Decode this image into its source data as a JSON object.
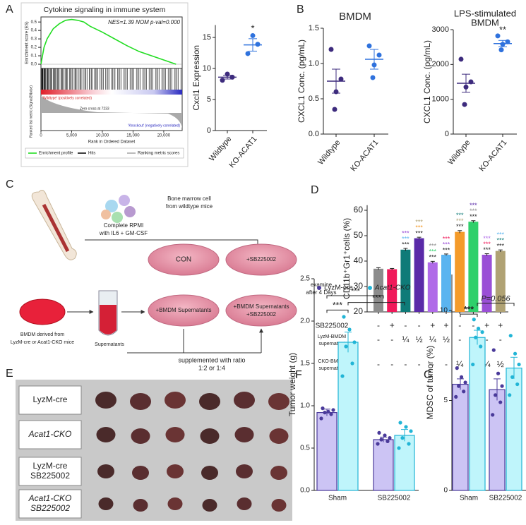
{
  "panel_labels": [
    "A",
    "B",
    "C",
    "D",
    "E",
    "F",
    "G"
  ],
  "chart_data": [
    {
      "type": "line",
      "title": "Cytokine signaling in immune system",
      "annotation": "NES=1.39 NOM p-val=0.000",
      "ylabel": "Enrichment score (ES)",
      "xlabel": "Rank in Ordered Dataset",
      "metric_label": "Ranked list metric (Signal2Noise)",
      "zero_cross": "Zero cross at 7233",
      "pos_label": "'Wildtype' (positively correlated)",
      "neg_label": "'Knockout' (negatively correlated)",
      "legend": [
        "Enrichment profile",
        "Hits",
        "Ranking metric scores"
      ],
      "color": "#22dd22",
      "x": [
        0,
        500,
        1000,
        2000,
        3000,
        4000,
        5000,
        6000,
        7000,
        8000,
        10000,
        12000,
        14000,
        16000,
        18000,
        20000,
        22000
      ],
      "values": [
        0,
        0.2,
        0.3,
        0.42,
        0.48,
        0.52,
        0.53,
        0.52,
        0.5,
        0.45,
        0.38,
        0.3,
        0.22,
        0.15,
        0.1,
        0.05,
        0.0
      ],
      "xlim": [
        0,
        23000
      ],
      "xticks": [
        0,
        {
          "value": 5000,
          "label": "5,000"
        },
        {
          "value": 10000,
          "label": "10,000"
        },
        {
          "value": 15000,
          "label": "15,000"
        },
        {
          "value": 20000,
          "label": "20,000"
        }
      ],
      "ylim": [
        -0.05,
        0.56
      ],
      "yticks": [
        {
          "value": 0,
          "label": "0.0"
        },
        0.1,
        0.2,
        0.3,
        0.4,
        0.5
      ]
    },
    {
      "type": "strip",
      "ylabel": "Cxcl1 Expression",
      "categories": [
        "Wildtype",
        "KO-ACAT1"
      ],
      "points": [
        [
          8.1,
          8.6,
          9.1
        ],
        [
          12.4,
          13.9,
          15.3
        ]
      ],
      "means": [
        8.6,
        13.8
      ],
      "errors": [
        0.3,
        1.0
      ],
      "colors": [
        "#3d2b7d",
        "#2f72dd"
      ],
      "annotation": "*",
      "ylim": [
        0,
        17
      ],
      "yticks": [
        0,
        5,
        10,
        15
      ]
    },
    {
      "type": "strip",
      "title": "BMDM",
      "ylabel": "CXCL1 Conc. (pg/mL)",
      "categories": [
        "Wildtype",
        "KO-ACAT1"
      ],
      "points": [
        [
          1.2,
          0.78,
          0.6,
          0.35
        ],
        [
          1.25,
          1.12,
          0.98,
          0.8
        ]
      ],
      "means": [
        0.75,
        1.06
      ],
      "errors": [
        0.17,
        0.14
      ],
      "colors": [
        "#3d2b7d",
        "#2f72dd"
      ],
      "ylim": [
        0,
        1.5
      ],
      "yticks": [
        {
          "value": 0,
          "label": "0.0"
        },
        0.5,
        {
          "value": 1,
          "label": "1.0"
        },
        1.5
      ]
    },
    {
      "type": "strip",
      "title": [
        "LPS-stimulated",
        "BMDM"
      ],
      "ylabel": "CXCL1 Conc. (pg/mL)",
      "categories": [
        "Wildtype",
        "KO-ACAT1"
      ],
      "points": [
        [
          2150,
          1500,
          1350,
          850
        ],
        [
          2820,
          2650,
          2580,
          2420
        ]
      ],
      "means": [
        1460,
        2600
      ],
      "errors": [
        260,
        90
      ],
      "colors": [
        "#3d2b7d",
        "#2f72dd"
      ],
      "annotation": "**",
      "ylim": [
        0,
        3000
      ],
      "yticks": [
        0,
        1000,
        2000,
        3000
      ]
    },
    {
      "type": "bar",
      "ylabel": "CD11b⁺Gr1⁺cells (%)",
      "values": [
        37,
        36.8,
        44.5,
        49,
        39.5,
        42.5,
        51.5,
        55.5,
        42.5,
        44
      ],
      "errors": [
        0.4,
        0.3,
        0.5,
        0.4,
        0.4,
        0.3,
        0.5,
        0.4,
        0.4,
        0.4
      ],
      "colors": [
        "#8c8c8c",
        "#f0195a",
        "#0f7b78",
        "#5a2aa8",
        "#b06ae8",
        "#5ab4f0",
        "#f49b2a",
        "#2fd06b",
        "#9a4fd6",
        "#b0a274"
      ],
      "annotations": [
        null,
        null,
        "***",
        "***",
        "***",
        "***",
        "***",
        "***",
        "***",
        "***"
      ],
      "ylim": [
        20,
        62
      ],
      "yticks": [
        20,
        30,
        40,
        50,
        60
      ],
      "rows": [
        {
          "label": [
            "SB225002"
          ],
          "cells": [
            "-",
            "+",
            "-",
            "-",
            "+",
            "+",
            "-",
            "-",
            "+",
            "+"
          ]
        },
        {
          "label": [
            "LyzM-BMDM",
            "supernatant"
          ],
          "cells": [
            "-",
            "-",
            "¼",
            "½",
            "¼",
            "½",
            "-",
            "-",
            "-",
            "-"
          ]
        },
        {
          "label": [
            "CKO-BMDM",
            "supernatant"
          ],
          "cells": [
            "-",
            "-",
            "-",
            "-",
            "-",
            "-",
            "¼",
            "½",
            "¼",
            "½"
          ]
        }
      ]
    },
    {
      "type": "groupbar",
      "ylabel": "Tumor weight (g)",
      "categories": [
        "Sham",
        "SB225002"
      ],
      "series": [
        {
          "name": "LyzM-cre",
          "color": "#ccc4f4",
          "edge": "#4a3a9a",
          "values": [
            0.92,
            0.6
          ],
          "errors": [
            0.04,
            0.03
          ],
          "points": [
            [
              0.85,
              0.9,
              0.92,
              0.95,
              0.93,
              0.97
            ],
            [
              0.55,
              0.58,
              0.6,
              0.62,
              0.65,
              0.68
            ]
          ]
        },
        {
          "name": "Acat1-CKO",
          "color": "#bff5fb",
          "edge": "#22b5d6",
          "values": [
            1.75,
            0.65
          ],
          "errors": [
            0.12,
            0.07
          ],
          "points": [
            [
              1.35,
              1.5,
              1.7,
              1.75,
              1.9,
              2.05
            ],
            [
              0.5,
              0.55,
              0.62,
              0.7,
              0.75,
              0.8
            ]
          ]
        }
      ],
      "annotations": [
        "***",
        "***",
        "***"
      ],
      "ylim": [
        0,
        2.5
      ],
      "yticks": [
        {
          "value": 0,
          "label": "0.0"
        },
        0.5,
        {
          "value": 1,
          "label": "1.0"
        },
        1.5,
        {
          "value": 2,
          "label": "2.0"
        },
        2.5
      ]
    },
    {
      "type": "groupbar",
      "ylabel": "MDSC of tumor (%)",
      "categories": [
        "Sham",
        "SB225002"
      ],
      "series": [
        {
          "color": "#ccc4f4",
          "edge": "#4a3a9a",
          "values": [
            5.9,
            5.6
          ],
          "errors": [
            0.3,
            0.6
          ],
          "points": [
            [
              5.2,
              5.5,
              5.8,
              6.0,
              6.3,
              6.8
            ],
            [
              4.2,
              4.9,
              5.3,
              5.8,
              6.5,
              7.8
            ]
          ]
        },
        {
          "color": "#bff5fb",
          "edge": "#22b5d6",
          "values": [
            8.5,
            6.8
          ],
          "errors": [
            0.4,
            0.6
          ],
          "points": [
            [
              7.0,
              8.0,
              8.5,
              8.8,
              9.0,
              9.5
            ],
            [
              5.3,
              5.9,
              6.3,
              7.0,
              7.6,
              8.6
            ]
          ]
        }
      ],
      "annotations": [
        "***",
        "P=0.056"
      ],
      "ylim": [
        0,
        12
      ],
      "yticks": [
        0,
        5,
        10
      ]
    }
  ],
  "diagram": {
    "bone_marrow": [
      "Bone marrow cell",
      "from wildtype mice"
    ],
    "medium": [
      "Complete RPMI",
      "with IL6 + GM-CSF"
    ],
    "dishes": [
      [
        "CON"
      ],
      [
        "+SB225002"
      ],
      [
        "+BMDM Supernatants"
      ],
      [
        "+BMDM Supernatants",
        "+SB225002"
      ]
    ],
    "examine": [
      "examine",
      "after 4 Days"
    ],
    "bmdm": [
      "BMDM derived from",
      "LyzM-cre or Acat1-CKO mice"
    ],
    "supernatants": "Supernatants",
    "supplement": [
      "supplemented with ratio",
      "1:2 or 1:4"
    ]
  },
  "photo": {
    "labels": [
      [
        "LyzM-cre"
      ],
      [
        "Acat1-CKO"
      ],
      [
        "LyzM-cre",
        "SB225002"
      ],
      [
        "Acat1-CKO",
        "SB225002"
      ]
    ]
  }
}
